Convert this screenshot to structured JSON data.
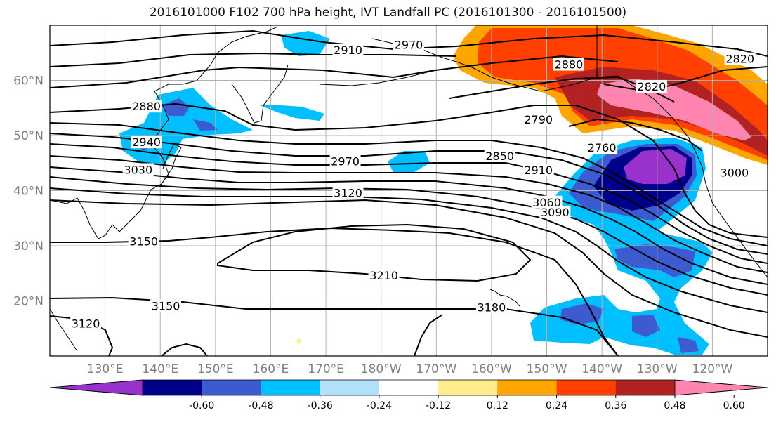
{
  "title": "2016101000 F102 700 hPa height, IVT Landfall PC (2016101300 - 2016101500)",
  "map": {
    "projection": "equirectangular",
    "lon_range": [
      120,
      250
    ],
    "lat_range": [
      10,
      70
    ],
    "lon_ticks": [
      "130°E",
      "140°E",
      "150°E",
      "160°E",
      "170°E",
      "180°W",
      "170°W",
      "160°W",
      "150°W",
      "140°W",
      "130°W",
      "120°W"
    ],
    "lat_ticks": [
      "20°N",
      "30°N",
      "40°N",
      "50°N",
      "60°N"
    ],
    "grid": true
  },
  "contour_labels": [
    {
      "text": "2970",
      "lon": 185,
      "lat": 66.4
    },
    {
      "text": "2910",
      "lon": 174,
      "lat": 65.4
    },
    {
      "text": "2880",
      "lon": 214,
      "lat": 62.8
    },
    {
      "text": "2820",
      "lon": 229,
      "lat": 58.8
    },
    {
      "text": "2820",
      "lon": 245,
      "lat": 63.8
    },
    {
      "text": "2790",
      "lon": 208.5,
      "lat": 52.8
    },
    {
      "text": "2760",
      "lon": 220,
      "lat": 47.7
    },
    {
      "text": "2850",
      "lon": 201.5,
      "lat": 46.2
    },
    {
      "text": "2910",
      "lon": 208.5,
      "lat": 43.6
    },
    {
      "text": "3000",
      "lon": 244,
      "lat": 43.2
    },
    {
      "text": "2970",
      "lon": 173.5,
      "lat": 45.2
    },
    {
      "text": "2880",
      "lon": 137.5,
      "lat": 55.2
    },
    {
      "text": "2940",
      "lon": 137.5,
      "lat": 48.7
    },
    {
      "text": "3030",
      "lon": 136,
      "lat": 43.7
    },
    {
      "text": "3120",
      "lon": 174,
      "lat": 39.5
    },
    {
      "text": "3060",
      "lon": 210,
      "lat": 37.8
    },
    {
      "text": "3090",
      "lon": 211.5,
      "lat": 36.0
    },
    {
      "text": "3150",
      "lon": 137,
      "lat": 30.7
    },
    {
      "text": "3210",
      "lon": 180.5,
      "lat": 24.5
    },
    {
      "text": "3150",
      "lon": 141,
      "lat": 19.0
    },
    {
      "text": "3180",
      "lon": 200,
      "lat": 18.7
    },
    {
      "text": "3120",
      "lon": 126.5,
      "lat": 15.8
    }
  ],
  "colorbar": {
    "ticks": [
      "-0.60",
      "-0.48",
      "-0.36",
      "-0.24",
      "-0.12",
      "0.12",
      "0.24",
      "0.36",
      "0.48",
      "0.60"
    ],
    "colors": [
      "#9932cc",
      "#00008b",
      "#3d5bd0",
      "#00bfff",
      "#b0e0fa",
      "#ffffff",
      "#ffec8b",
      "#ffa500",
      "#ff4000",
      "#b22222",
      "#ff85b0"
    ],
    "extend": "both"
  },
  "colors": {
    "tick_label": "#808080",
    "grid": "#b0b0b0",
    "contour": "#000000"
  }
}
